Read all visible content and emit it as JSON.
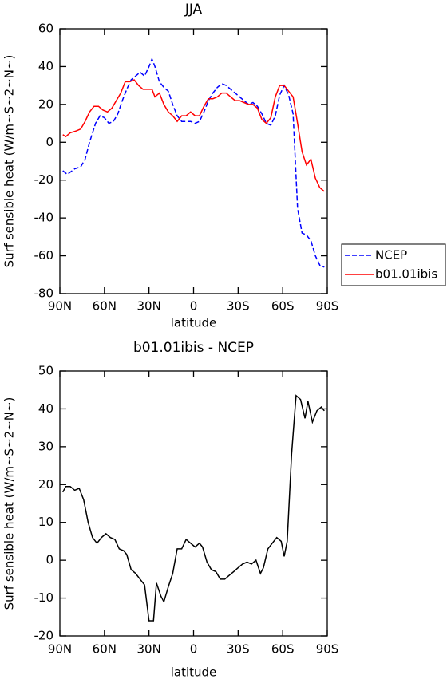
{
  "chart_data": [
    {
      "type": "line",
      "title": "JJA",
      "x_label": "latitude",
      "y_label": "Surf sensible heat (W/m~S~2~N~)",
      "xlim": [
        90,
        -90
      ],
      "ylim": [
        -80,
        60
      ],
      "xticks": [
        {
          "value": 90,
          "label": "90N"
        },
        {
          "value": 60,
          "label": "60N"
        },
        {
          "value": 30,
          "label": "30N"
        },
        0,
        {
          "value": -30,
          "label": "30S"
        },
        {
          "value": -60,
          "label": "60S"
        },
        {
          "value": -90,
          "label": "90S"
        }
      ],
      "yticks": [
        -80,
        -60,
        -40,
        -20,
        0,
        20,
        40,
        60
      ],
      "legend": "right",
      "series": [
        {
          "name": "NCEP",
          "color": "#0000ff",
          "dash": true,
          "x": [
            88,
            85,
            80,
            76,
            73,
            70,
            66,
            63,
            60,
            57,
            54,
            51,
            48,
            45,
            42,
            39,
            36,
            33,
            30,
            28,
            26,
            23,
            20,
            17,
            14,
            11,
            8,
            5,
            2,
            -1,
            -4,
            -7,
            -10,
            -13,
            -16,
            -19,
            -22,
            -25,
            -28,
            -31,
            -34,
            -37,
            -40,
            -43,
            -46,
            -49,
            -52,
            -55,
            -58,
            -61,
            -64,
            -67,
            -70,
            -73,
            -76,
            -79,
            -82,
            -85,
            -88
          ],
          "values": [
            -15,
            -17,
            -14,
            -13,
            -9,
            0,
            10,
            14,
            13,
            10,
            11,
            15,
            22,
            28,
            33,
            35,
            37,
            35,
            40,
            44,
            40,
            32,
            29,
            27,
            20,
            14,
            11,
            11,
            11,
            10,
            11,
            16,
            22,
            26,
            29,
            31,
            30,
            28,
            26,
            24,
            22,
            20,
            21,
            19,
            15,
            10,
            9,
            14,
            25,
            30,
            25,
            15,
            -35,
            -48,
            -49,
            -52,
            -60,
            -65,
            -66
          ]
        },
        {
          "name": "b01.01ibis",
          "color": "#ff0000",
          "dash": false,
          "x": [
            88,
            86,
            83,
            79,
            76,
            73,
            70,
            67,
            64,
            61,
            58,
            55,
            52,
            49,
            46,
            43,
            40,
            37,
            34,
            31,
            28,
            26,
            23,
            20,
            17,
            14,
            11,
            8,
            5,
            2,
            -1,
            -4,
            -7,
            -10,
            -13,
            -16,
            -19,
            -22,
            -25,
            -28,
            -31,
            -34,
            -37,
            -40,
            -43,
            -46,
            -49,
            -52,
            -55,
            -58,
            -61,
            -64,
            -67,
            -70,
            -73,
            -76,
            -79,
            -82,
            -85,
            -88
          ],
          "values": [
            4,
            3,
            5,
            6,
            7,
            11,
            16,
            19,
            19,
            17,
            16,
            18,
            22,
            26,
            32,
            32,
            33,
            30,
            28,
            28,
            28,
            24,
            26,
            20,
            16,
            14,
            11,
            14,
            14,
            16,
            14,
            14,
            19,
            23,
            23,
            24,
            26,
            26,
            24,
            22,
            22,
            21,
            20,
            20,
            18,
            12,
            10,
            13,
            24,
            30,
            30,
            27,
            24,
            10,
            -5,
            -12,
            -9,
            -19,
            -24,
            -26
          ]
        }
      ]
    },
    {
      "type": "line",
      "title": "b01.01ibis - NCEP",
      "x_label": "latitude",
      "y_label": "Surf sensible heat (W/m~S~2~N~)",
      "xlim": [
        90,
        -90
      ],
      "ylim": [
        -20,
        50
      ],
      "xticks": [
        {
          "value": 90,
          "label": "90N"
        },
        {
          "value": 60,
          "label": "60N"
        },
        {
          "value": 30,
          "label": "30N"
        },
        0,
        {
          "value": -30,
          "label": "30S"
        },
        {
          "value": -60,
          "label": "60S"
        },
        {
          "value": -90,
          "label": "90S"
        }
      ],
      "yticks": [
        -20,
        -10,
        0,
        10,
        20,
        30,
        40,
        50
      ],
      "series": [
        {
          "color": "#000000",
          "dash": false,
          "x": [
            88,
            86,
            83,
            80,
            77,
            74,
            71,
            68,
            65,
            62,
            59,
            56,
            53,
            50,
            47,
            45,
            42,
            39,
            36,
            33,
            30,
            27,
            25,
            22,
            20,
            17,
            14,
            11,
            8,
            5,
            2,
            -1,
            -4,
            -6,
            -9,
            -12,
            -15,
            -18,
            -21,
            -24,
            -27,
            -30,
            -33,
            -36,
            -39,
            -42,
            -45,
            -47,
            -50,
            -53,
            -56,
            -59,
            -61,
            -63,
            -66,
            -69,
            -72,
            -75,
            -77,
            -80,
            -83,
            -86,
            -88
          ],
          "values": [
            18,
            19.5,
            19.5,
            18.5,
            19,
            16,
            10,
            6,
            4.5,
            6,
            7,
            6,
            5.5,
            3,
            2.5,
            1.5,
            -2.5,
            -3.5,
            -5,
            -6.5,
            -16,
            -16,
            -6,
            -9.5,
            -11,
            -7,
            -3.5,
            3,
            3,
            5.5,
            4.5,
            3.5,
            4.5,
            3.5,
            -0.5,
            -2.5,
            -3,
            -5,
            -5,
            -4,
            -3,
            -2,
            -1,
            -0.5,
            -1,
            0,
            -3.5,
            -2,
            3,
            4.5,
            6,
            5,
            1,
            5,
            28,
            43.5,
            42.5,
            37.5,
            42,
            36.5,
            39.5,
            40.5,
            39.5
          ]
        }
      ]
    }
  ]
}
